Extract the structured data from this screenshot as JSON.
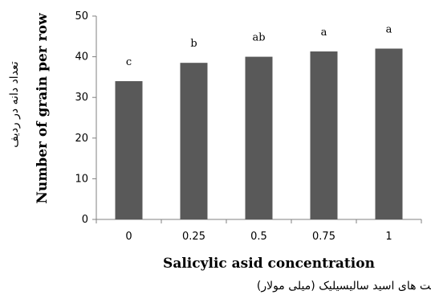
{
  "chart_data": {
    "type": "bar",
    "categories": [
      "0",
      "0.25",
      "0.5",
      "0.75",
      "1"
    ],
    "values": [
      34,
      38.5,
      40,
      41.3,
      42
    ],
    "data_labels": [
      "c",
      "b",
      "ab",
      "a",
      "a"
    ],
    "title": "",
    "xlabel": "Salicylic asid concentration",
    "xlabel_secondary": "غلظت های اسید سالیسیلیک (میلی مولار)",
    "ylabel": "Number of grain per row",
    "ylabel_secondary": "تعداد دانه در ردیف",
    "ylim": [
      0,
      50
    ],
    "yticks": [
      0,
      10,
      20,
      30,
      40,
      50
    ],
    "grid": false,
    "legend": "none",
    "bar_color": "#595959",
    "axis_color": "#808080"
  }
}
